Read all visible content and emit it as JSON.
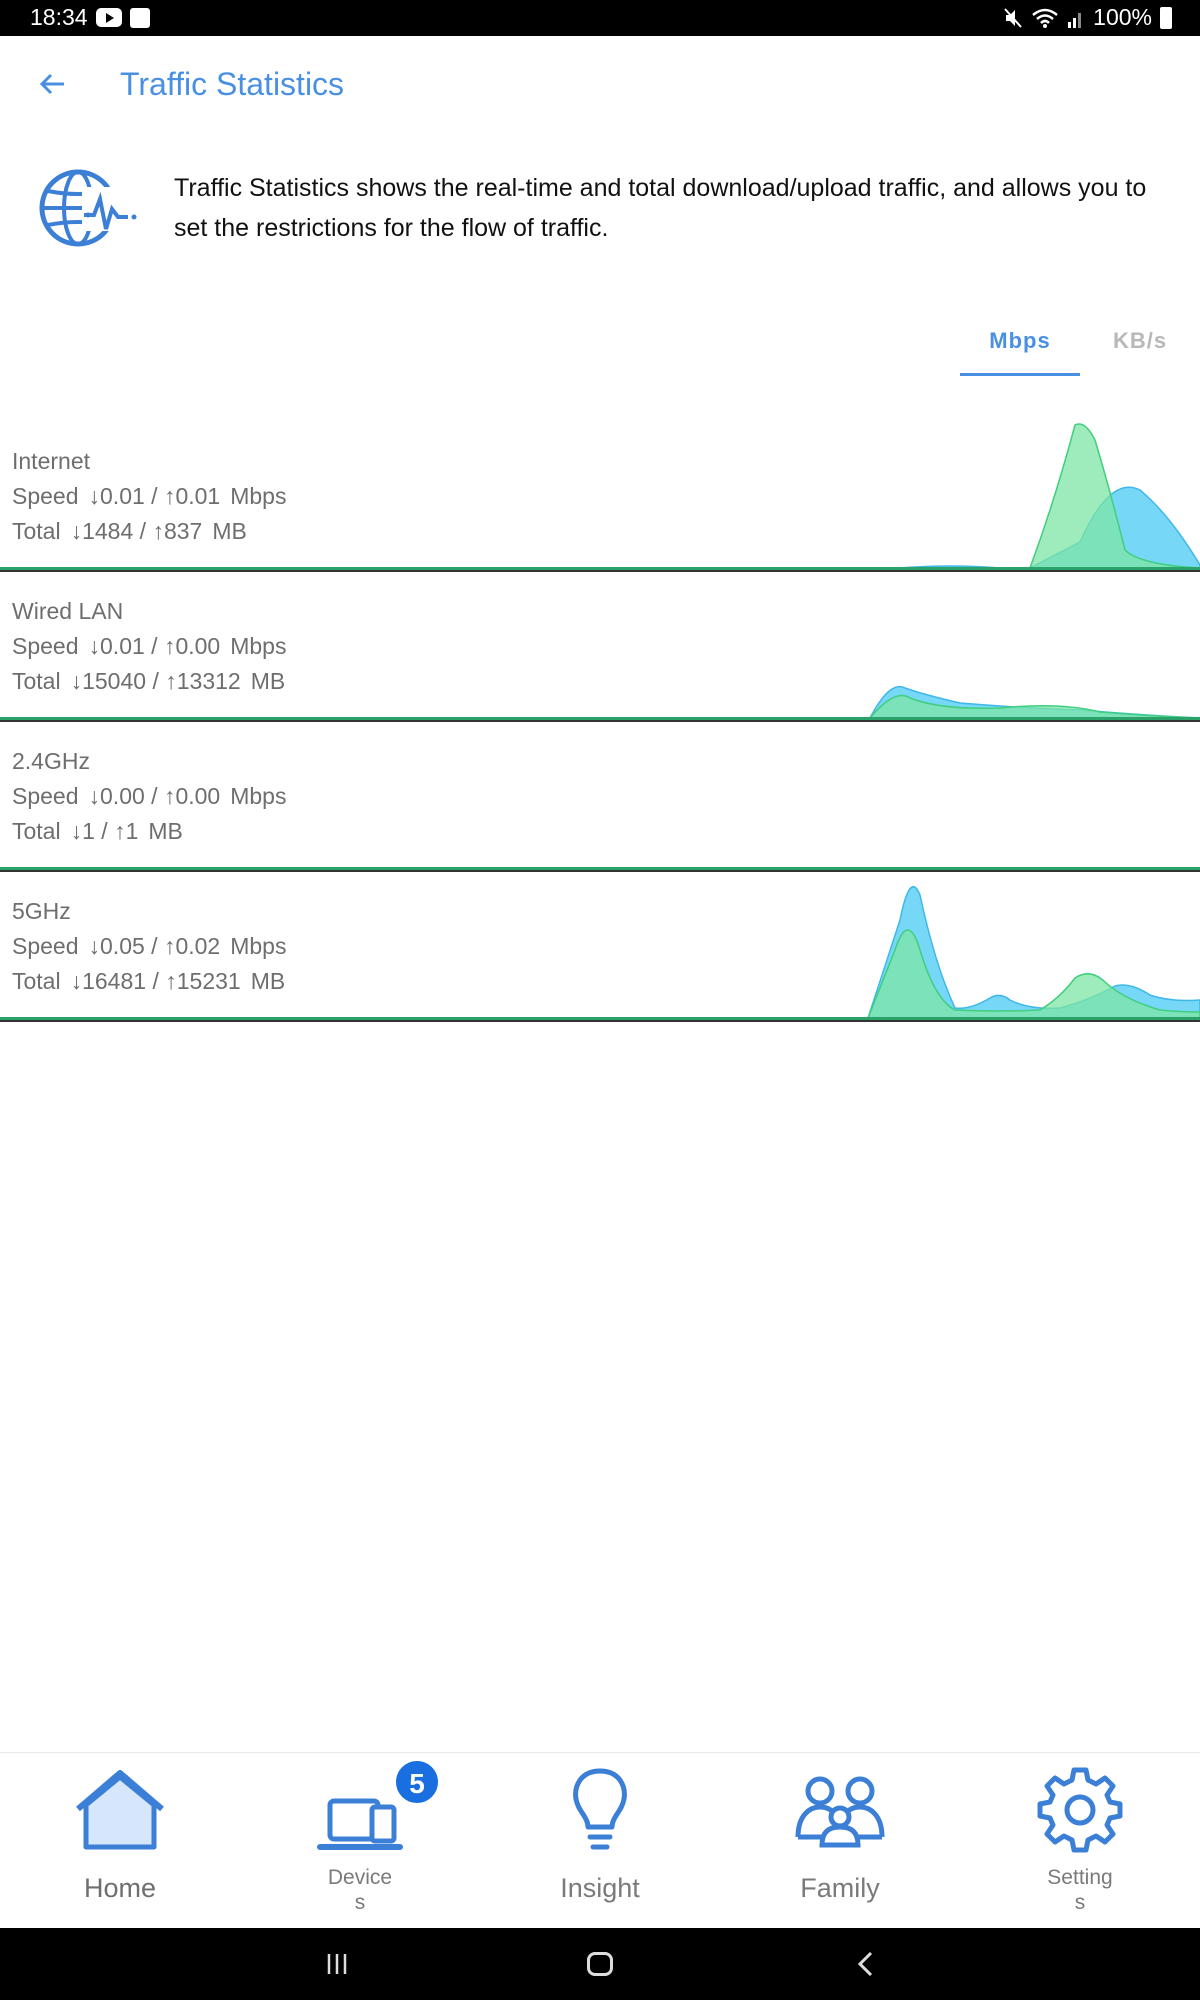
{
  "status_bar": {
    "time": "18:34",
    "battery": "100%"
  },
  "header": {
    "title": "Traffic Statistics"
  },
  "intro": {
    "text": "Traffic Statistics shows the real-time and total download/upload traffic, and allows you to set the restrictions for the flow of traffic."
  },
  "unit_tabs": [
    {
      "label": "Mbps",
      "selected": true
    },
    {
      "label": "KB/s",
      "selected": false
    }
  ],
  "speed_label": "Speed",
  "total_label": "Total",
  "down_arrow": "↓",
  "up_arrow": "↑",
  "slash": "/",
  "colors": {
    "accent": "#4a90e2",
    "download_fill": "#5fd0f5",
    "upload_fill": "#7ee6a4",
    "baseline": "#2aa36a"
  },
  "rows": [
    {
      "name": "Internet",
      "speed_down": "0.01",
      "speed_up": "0.01",
      "speed_unit": "Mbps",
      "total_down": "1484",
      "total_up": "837",
      "total_unit": "MB"
    },
    {
      "name": "Wired LAN",
      "speed_down": "0.01",
      "speed_up": "0.00",
      "speed_unit": "Mbps",
      "total_down": "15040",
      "total_up": "13312",
      "total_unit": "MB"
    },
    {
      "name": "2.4GHz",
      "speed_down": "0.00",
      "speed_up": "0.00",
      "speed_unit": "Mbps",
      "total_down": "1",
      "total_up": "1",
      "total_unit": "MB"
    },
    {
      "name": "5GHz",
      "speed_down": "0.05",
      "speed_up": "0.02",
      "speed_unit": "Mbps",
      "total_down": "16481",
      "total_up": "15231",
      "total_unit": "MB"
    }
  ],
  "bottom_nav": [
    {
      "label": "Home",
      "icon": "home-icon"
    },
    {
      "label_line1": "Device",
      "label_line2": "s",
      "icon": "devices-icon",
      "badge": "5"
    },
    {
      "label": "Insight",
      "icon": "lightbulb-icon"
    },
    {
      "label": "Family",
      "icon": "family-icon"
    },
    {
      "label_line1": "Setting",
      "label_line2": "s",
      "icon": "gear-icon"
    }
  ]
}
